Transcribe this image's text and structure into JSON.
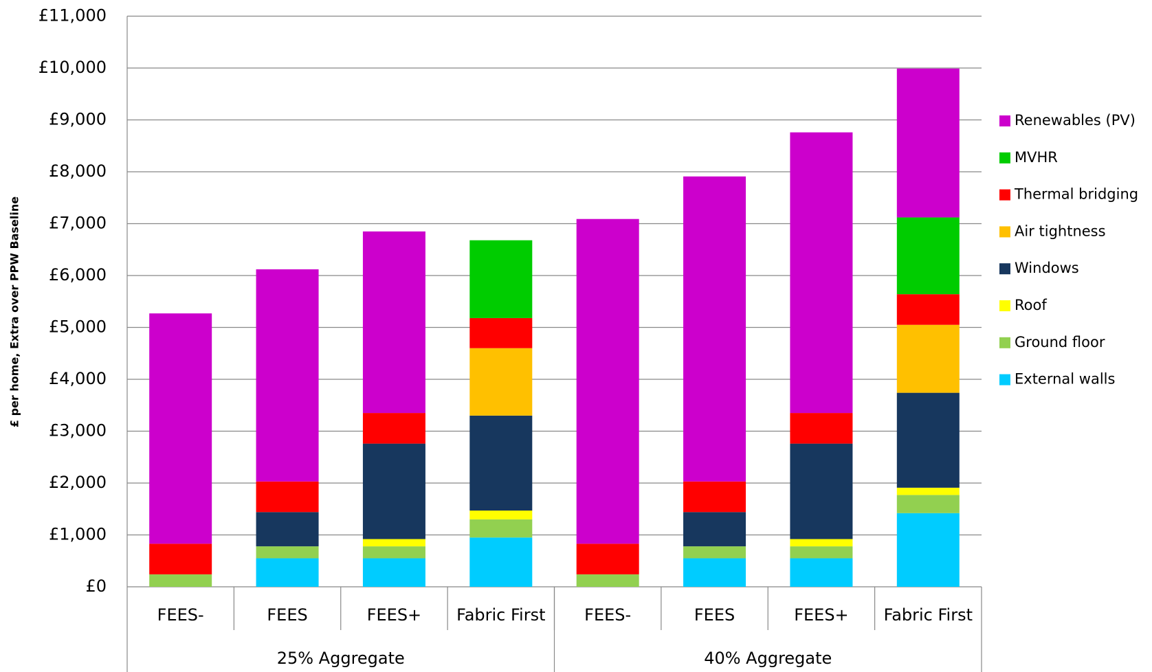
{
  "chart_data": {
    "type": "stacked_bar",
    "y_axis_label": "£ per home, Extra over PPW Baseline",
    "groups": [
      {
        "name": "25% Aggregate",
        "categories": [
          "FEES-",
          "FEES",
          "FEES+",
          "Fabric First"
        ]
      },
      {
        "name": "40% Aggregate",
        "categories": [
          "FEES-",
          "FEES",
          "FEES+",
          "Fabric First"
        ]
      }
    ],
    "series": [
      {
        "name": "External walls",
        "color": "#00ccff",
        "values": [
          0,
          550,
          550,
          950,
          0,
          550,
          550,
          1420
        ]
      },
      {
        "name": "Ground floor",
        "color": "#92d050",
        "values": [
          240,
          230,
          230,
          350,
          240,
          230,
          230,
          350
        ]
      },
      {
        "name": "Roof",
        "color": "#ffff00",
        "values": [
          0,
          0,
          140,
          170,
          0,
          0,
          140,
          140
        ]
      },
      {
        "name": "Windows",
        "color": "#17375e",
        "values": [
          0,
          660,
          1840,
          1830,
          0,
          660,
          1840,
          1830
        ]
      },
      {
        "name": "Air tightness",
        "color": "#ffc000",
        "values": [
          0,
          0,
          0,
          1300,
          0,
          0,
          0,
          1310
        ]
      },
      {
        "name": "Thermal bridging",
        "color": "#ff0000",
        "values": [
          590,
          590,
          590,
          580,
          590,
          590,
          590,
          590
        ]
      },
      {
        "name": "MVHR",
        "color": "#00cc00",
        "values": [
          0,
          0,
          0,
          1500,
          0,
          0,
          0,
          1480
        ]
      },
      {
        "name": "Renewables (PV)",
        "color": "#cc00cc",
        "values": [
          4440,
          4090,
          3500,
          0,
          6260,
          5880,
          5410,
          2870
        ]
      }
    ],
    "ylim": [
      0,
      11000
    ],
    "yticks": [
      {
        "value": 0,
        "label": "£0"
      },
      {
        "value": 1000,
        "label": "£1,000"
      },
      {
        "value": 2000,
        "label": "£2,000"
      },
      {
        "value": 3000,
        "label": "£3,000"
      },
      {
        "value": 4000,
        "label": "£4,000"
      },
      {
        "value": 5000,
        "label": "£5,000"
      },
      {
        "value": 6000,
        "label": "£6,000"
      },
      {
        "value": 7000,
        "label": "£7,000"
      },
      {
        "value": 8000,
        "label": "£8,000"
      },
      {
        "value": 9000,
        "label": "£9,000"
      },
      {
        "value": 10000,
        "label": "£10,000"
      },
      {
        "value": 11000,
        "label": "£11,000"
      }
    ],
    "grid": true,
    "legend": "right"
  }
}
